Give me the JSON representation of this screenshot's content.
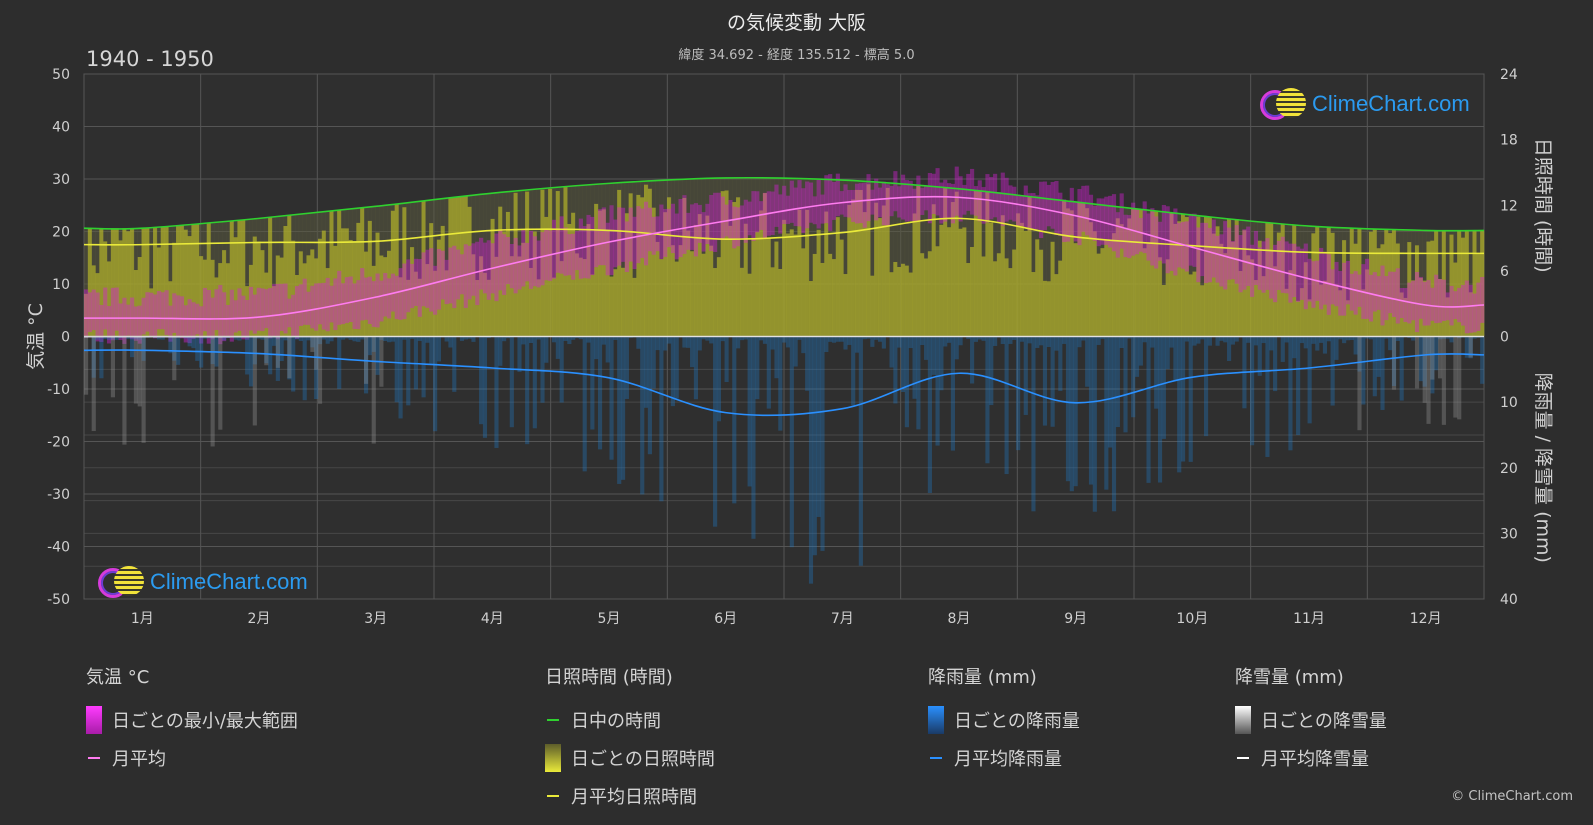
{
  "header": {
    "title": "の気候変動 大阪",
    "subtitle": "緯度 34.692 - 経度 135.512 - 標高 5.0",
    "period": "1940 - 1950"
  },
  "axes": {
    "left_label": "気温 °C",
    "right_top_label": "日照時間 (時間)",
    "right_bottom_label": "降雨量 / 降雪量 (mm)",
    "left_ticks": [
      "50",
      "40",
      "30",
      "20",
      "10",
      "0",
      "-10",
      "-20",
      "-30",
      "-40",
      "-50"
    ],
    "right_sun_ticks": [
      "24",
      "18",
      "12",
      "6",
      "0"
    ],
    "right_rain_ticks": [
      "10",
      "20",
      "30",
      "40"
    ]
  },
  "logo_text": "ClimeChart.com",
  "copyright": "© ClimeChart.com",
  "legend": {
    "temp": {
      "head": "気温 °C",
      "range": "日ごとの最小/最大範囲",
      "mean": "月平均"
    },
    "sun": {
      "head": "日照時間 (時間)",
      "daylight": "日中の時間",
      "daily": "日ごとの日照時間",
      "mean": "月平均日照時間"
    },
    "rain": {
      "head": "降雨量 (mm)",
      "daily": "日ごとの降雨量",
      "mean": "月平均降雨量"
    },
    "snow": {
      "head": "降雪量 (mm)",
      "daily": "日ごとの降雪量",
      "mean": "月平均降雪量"
    }
  },
  "colors": {
    "background": "#2d2d2d",
    "temp_range": "#d61fd6",
    "temp_mean": "#ff7cf0",
    "daylight": "#2fd12f",
    "sunshine": "#b3b32a",
    "sunshine_mean": "#eaea3a",
    "rain": "#1f7ac9",
    "snow": "#9a9a9a",
    "snow_mean": "#ffffff"
  },
  "chart_data": {
    "type": "area",
    "categories": [
      "1月",
      "2月",
      "3月",
      "4月",
      "5月",
      "6月",
      "7月",
      "8月",
      "9月",
      "10月",
      "11月",
      "12月"
    ],
    "temp_ylim": [
      -50,
      50
    ],
    "sunshine_ylim": [
      0,
      24
    ],
    "precip_ylim": [
      0,
      40
    ],
    "series": [
      {
        "name": "月平均",
        "unit": "°C",
        "values": [
          3.5,
          3.7,
          7.5,
          13,
          18,
          22,
          25.5,
          26.5,
          23,
          17,
          11,
          6
        ]
      },
      {
        "name": "日ごとの最小/最大範囲 (最低)",
        "unit": "°C",
        "values": [
          0,
          0,
          3,
          8,
          13,
          18,
          22,
          23,
          19,
          12,
          6,
          2
        ]
      },
      {
        "name": "日ごとの最小/最大範囲 (最高)",
        "unit": "°C",
        "values": [
          7.5,
          8,
          12,
          18,
          23,
          26,
          29.5,
          30.5,
          27.5,
          22,
          16,
          10
        ]
      },
      {
        "name": "日中の時間",
        "unit": "時間",
        "values": [
          9.9,
          10.8,
          11.9,
          13.1,
          14.0,
          14.5,
          14.3,
          13.5,
          12.3,
          11.1,
          10.1,
          9.7
        ]
      },
      {
        "name": "月平均日照時間",
        "unit": "時間",
        "values": [
          8.4,
          8.6,
          8.7,
          9.7,
          9.7,
          8.9,
          9.5,
          10.8,
          9.1,
          8.3,
          7.7,
          7.6
        ]
      },
      {
        "name": "月平均降雨量",
        "unit": "mm",
        "values": [
          2.1,
          2.6,
          3.8,
          4.8,
          6.3,
          11.6,
          11.0,
          5.6,
          10.1,
          6.2,
          4.8,
          2.8
        ]
      },
      {
        "name": "月平均降雪量",
        "unit": "mm",
        "values": [
          0.1,
          0.1,
          0,
          0,
          0,
          0,
          0,
          0,
          0,
          0,
          0,
          0
        ]
      }
    ]
  }
}
